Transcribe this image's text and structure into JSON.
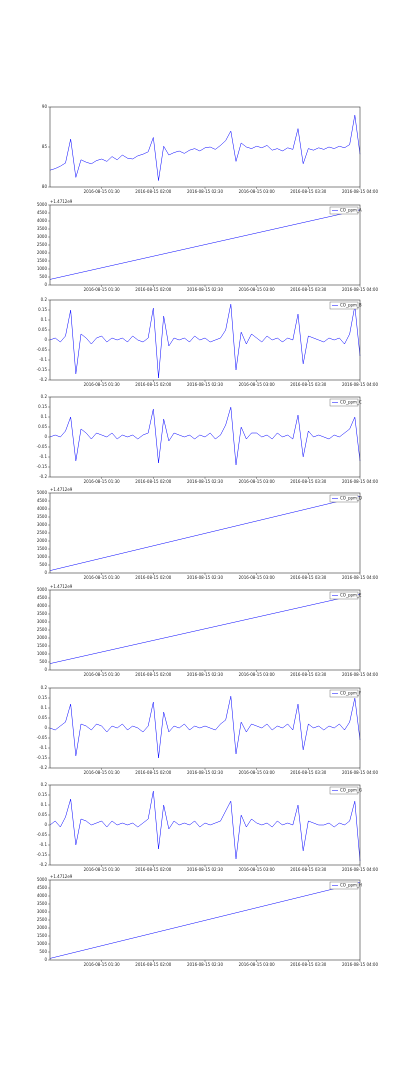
{
  "chart_data": [
    {
      "type": "line",
      "xlim": [
        0,
        60
      ],
      "xticks": [
        {
          "value": 10,
          "label": "2016-08-15 01:30"
        },
        {
          "value": 20,
          "label": "2016-08-15 02:00"
        },
        {
          "value": 30,
          "label": "2016-08-15 02:30"
        },
        {
          "value": 40,
          "label": "2016-08-15 03:00"
        },
        {
          "value": 50,
          "label": "2016-08-15 03:30"
        },
        {
          "value": 60,
          "label": "2016-08-15 04:00"
        }
      ],
      "ylim": [
        80,
        90
      ],
      "yticks": [
        80,
        85,
        90
      ],
      "series": [
        {
          "color": "#0000ff",
          "values": [
            82.1,
            82.3,
            82.6,
            83.0,
            86.0,
            81.2,
            83.4,
            83.1,
            82.9,
            83.3,
            83.5,
            83.2,
            83.8,
            83.4,
            84.0,
            83.6,
            83.5,
            83.9,
            84.1,
            84.4,
            86.2,
            80.8,
            85.1,
            84.0,
            84.3,
            84.5,
            84.2,
            84.6,
            84.8,
            84.5,
            84.9,
            85.0,
            84.7,
            85.2,
            85.8,
            87.0,
            83.2,
            85.5,
            85.0,
            84.8,
            85.1,
            84.9,
            85.2,
            84.6,
            84.8,
            84.5,
            84.9,
            84.7,
            87.3,
            82.9,
            84.8,
            84.6,
            84.9,
            84.7,
            85.0,
            84.8,
            85.1,
            84.9,
            85.3,
            89.0,
            84.1
          ]
        }
      ]
    },
    {
      "type": "line",
      "offset_text": "+1.4712e9",
      "legend": "CO_ppm_A",
      "xlim": [
        0,
        60
      ],
      "xticks": [
        {
          "value": 10,
          "label": "2016-08-15 01:30"
        },
        {
          "value": 20,
          "label": "2016-08-15 02:00"
        },
        {
          "value": 30,
          "label": "2016-08-15 02:30"
        },
        {
          "value": 40,
          "label": "2016-08-15 03:00"
        },
        {
          "value": 50,
          "label": "2016-08-15 03:30"
        },
        {
          "value": 60,
          "label": "2016-08-15 04:00"
        }
      ],
      "ylim": [
        0,
        5000
      ],
      "yticks": [
        0,
        500,
        1000,
        1500,
        2000,
        2500,
        3000,
        3500,
        4000,
        4500,
        5000
      ],
      "series": [
        {
          "name": "CO_ppm_A",
          "color": "#0000ff",
          "x": [
            0,
            60
          ],
          "values": [
            350,
            4700
          ]
        }
      ]
    },
    {
      "type": "line",
      "legend": "CO_ppm_B",
      "xlim": [
        0,
        60
      ],
      "xticks": [
        {
          "value": 10,
          "label": "2016-08-15 01:30"
        },
        {
          "value": 20,
          "label": "2016-08-15 02:00"
        },
        {
          "value": 30,
          "label": "2016-08-15 02:30"
        },
        {
          "value": 40,
          "label": "2016-08-15 03:00"
        },
        {
          "value": 50,
          "label": "2016-08-15 03:30"
        },
        {
          "value": 60,
          "label": "2016-08-15 04:00"
        }
      ],
      "ylim": [
        -0.2,
        0.2
      ],
      "yticks": [
        -0.2,
        -0.15,
        -0.1,
        -0.05,
        0,
        0.05,
        0.1,
        0.15,
        0.2
      ],
      "series": [
        {
          "name": "CO_ppm_B",
          "color": "#0000ff",
          "values": [
            0,
            0.01,
            -0.01,
            0.02,
            0.15,
            -0.17,
            0.03,
            0.01,
            -0.02,
            0.01,
            0.02,
            -0.01,
            0.01,
            0,
            0.01,
            -0.01,
            0.02,
            0,
            -0.01,
            0.01,
            0.16,
            -0.19,
            0.12,
            -0.03,
            0.01,
            0,
            0.01,
            -0.01,
            0.02,
            0,
            0.01,
            -0.01,
            0,
            0.01,
            0.05,
            0.18,
            -0.15,
            0.04,
            -0.02,
            0.03,
            0.01,
            -0.01,
            0.02,
            0,
            0.01,
            -0.01,
            0.01,
            0,
            0.13,
            -0.12,
            0.02,
            0.01,
            0,
            -0.01,
            0.01,
            0,
            0.01,
            -0.02,
            0.03,
            0.17,
            -0.08
          ]
        }
      ]
    },
    {
      "type": "line",
      "legend": "CO_ppm_C",
      "xlim": [
        0,
        60
      ],
      "xticks": [
        {
          "value": 10,
          "label": "2016-08-15 01:30"
        },
        {
          "value": 20,
          "label": "2016-08-15 02:00"
        },
        {
          "value": 30,
          "label": "2016-08-15 02:30"
        },
        {
          "value": 40,
          "label": "2016-08-15 03:00"
        },
        {
          "value": 50,
          "label": "2016-08-15 03:30"
        },
        {
          "value": 60,
          "label": "2016-08-15 04:00"
        }
      ],
      "ylim": [
        -0.2,
        0.2
      ],
      "yticks": [
        -0.2,
        -0.15,
        -0.1,
        -0.05,
        0,
        0.05,
        0.1,
        0.15,
        0.2
      ],
      "series": [
        {
          "name": "CO_ppm_C",
          "color": "#0000ff",
          "values": [
            0,
            0.01,
            0,
            0.03,
            0.1,
            -0.12,
            0.04,
            0.02,
            -0.01,
            0.02,
            0.01,
            0,
            0.02,
            -0.01,
            0.01,
            0,
            0.01,
            -0.01,
            0.01,
            0.02,
            0.14,
            -0.13,
            0.09,
            -0.02,
            0.02,
            0.01,
            0,
            0.01,
            -0.01,
            0.01,
            0,
            0.02,
            -0.01,
            0.01,
            0.06,
            0.15,
            -0.14,
            0.05,
            -0.01,
            0.02,
            0.02,
            0,
            0.01,
            -0.01,
            0.02,
            0,
            0.01,
            -0.01,
            0.11,
            -0.1,
            0.03,
            0,
            0.01,
            0,
            -0.01,
            0.01,
            0,
            0.02,
            0.04,
            0.1,
            -0.12
          ]
        }
      ]
    },
    {
      "type": "line",
      "offset_text": "+1.4712e9",
      "legend": "CO_ppm_D",
      "xlim": [
        0,
        60
      ],
      "xticks": [
        {
          "value": 10,
          "label": "2016-08-15 01:30"
        },
        {
          "value": 20,
          "label": "2016-08-15 02:00"
        },
        {
          "value": 30,
          "label": "2016-08-15 02:30"
        },
        {
          "value": 40,
          "label": "2016-08-15 03:00"
        },
        {
          "value": 50,
          "label": "2016-08-15 03:30"
        },
        {
          "value": 60,
          "label": "2016-08-15 04:00"
        }
      ],
      "ylim": [
        0,
        5000
      ],
      "yticks": [
        0,
        500,
        1000,
        1500,
        2000,
        2500,
        3000,
        3500,
        4000,
        4500,
        5000
      ],
      "series": [
        {
          "name": "CO_ppm_D",
          "color": "#0000ff",
          "x": [
            0,
            60
          ],
          "values": [
            150,
            4800
          ]
        }
      ]
    },
    {
      "type": "line",
      "offset_text": "+1.4712e9",
      "legend": "CO_ppm_E",
      "xlim": [
        0,
        60
      ],
      "xticks": [
        {
          "value": 10,
          "label": "2016-08-15 01:30"
        },
        {
          "value": 20,
          "label": "2016-08-15 02:00"
        },
        {
          "value": 30,
          "label": "2016-08-15 02:30"
        },
        {
          "value": 40,
          "label": "2016-08-15 03:00"
        },
        {
          "value": 50,
          "label": "2016-08-15 03:30"
        },
        {
          "value": 60,
          "label": "2016-08-15 04:00"
        }
      ],
      "ylim": [
        0,
        5000
      ],
      "yticks": [
        0,
        500,
        1000,
        1500,
        2000,
        2500,
        3000,
        3500,
        4000,
        4500,
        5000
      ],
      "series": [
        {
          "name": "CO_ppm_E",
          "color": "#0000ff",
          "x": [
            0,
            60
          ],
          "values": [
            400,
            4750
          ]
        }
      ]
    },
    {
      "type": "line",
      "legend": "CO_ppm_F",
      "xlim": [
        0,
        60
      ],
      "xticks": [
        {
          "value": 10,
          "label": "2016-08-15 01:30"
        },
        {
          "value": 20,
          "label": "2016-08-15 02:00"
        },
        {
          "value": 30,
          "label": "2016-08-15 02:30"
        },
        {
          "value": 40,
          "label": "2016-08-15 03:00"
        },
        {
          "value": 50,
          "label": "2016-08-15 03:30"
        },
        {
          "value": 60,
          "label": "2016-08-15 04:00"
        }
      ],
      "ylim": [
        -0.2,
        0.2
      ],
      "yticks": [
        -0.2,
        -0.15,
        -0.1,
        -0.05,
        0,
        0.05,
        0.1,
        0.15,
        0.2
      ],
      "series": [
        {
          "name": "CO_ppm_F",
          "color": "#0000ff",
          "values": [
            0,
            -0.01,
            0.01,
            0.03,
            0.12,
            -0.14,
            0.02,
            0.01,
            -0.01,
            0.02,
            0.01,
            -0.02,
            0.01,
            0,
            0.02,
            -0.01,
            0.01,
            0,
            -0.02,
            0.01,
            0.13,
            -0.15,
            0.08,
            -0.02,
            0.01,
            0,
            0.02,
            -0.01,
            0.01,
            0,
            0.01,
            0,
            -0.01,
            0.02,
            0.04,
            0.16,
            -0.13,
            0.03,
            -0.02,
            0.02,
            0.01,
            0,
            0.02,
            -0.01,
            0.01,
            0,
            0.02,
            -0.01,
            0.12,
            -0.11,
            0.02,
            0,
            0.01,
            -0.01,
            0.01,
            0,
            0.02,
            -0.01,
            0.03,
            0.15,
            -0.06
          ]
        }
      ]
    },
    {
      "type": "line",
      "legend": "CO_ppm_G",
      "xlim": [
        0,
        60
      ],
      "xticks": [
        {
          "value": 10,
          "label": "2016-08-15 01:30"
        },
        {
          "value": 20,
          "label": "2016-08-15 02:00"
        },
        {
          "value": 30,
          "label": "2016-08-15 02:30"
        },
        {
          "value": 40,
          "label": "2016-08-15 03:00"
        },
        {
          "value": 50,
          "label": "2016-08-15 03:30"
        },
        {
          "value": 60,
          "label": "2016-08-15 04:00"
        }
      ],
      "ylim": [
        -0.2,
        0.2
      ],
      "yticks": [
        -0.2,
        -0.15,
        -0.1,
        -0.05,
        0,
        0.05,
        0.1,
        0.15,
        0.2
      ],
      "series": [
        {
          "name": "CO_ppm_G",
          "color": "#0000ff",
          "values": [
            0,
            0.02,
            -0.01,
            0.04,
            0.13,
            -0.1,
            0.03,
            0.02,
            0,
            0.01,
            0.02,
            -0.01,
            0.02,
            0,
            0.01,
            0,
            0.01,
            -0.01,
            0.01,
            0.03,
            0.17,
            -0.12,
            0.1,
            -0.02,
            0.02,
            0,
            0.01,
            0,
            0.02,
            -0.01,
            0.01,
            0,
            0.01,
            0.02,
            0.07,
            0.12,
            -0.17,
            0.05,
            -0.01,
            0.03,
            0.01,
            0,
            0.01,
            -0.01,
            0.02,
            0,
            0.01,
            0,
            0.1,
            -0.13,
            0.02,
            0.01,
            0,
            0,
            0.01,
            -0.01,
            0.01,
            0,
            0.02,
            0.12,
            -0.18
          ]
        }
      ]
    },
    {
      "type": "line",
      "offset_text": "+1.4712e9",
      "legend": "CO_ppm_H",
      "xlim": [
        0,
        60
      ],
      "xticks": [
        {
          "value": 10,
          "label": "2016-08-15 01:30"
        },
        {
          "value": 20,
          "label": "2016-08-15 02:00"
        },
        {
          "value": 30,
          "label": "2016-08-15 02:30"
        },
        {
          "value": 40,
          "label": "2016-08-15 03:00"
        },
        {
          "value": 50,
          "label": "2016-08-15 03:30"
        },
        {
          "value": 60,
          "label": "2016-08-15 04:00"
        }
      ],
      "ylim": [
        0,
        5000
      ],
      "yticks": [
        0,
        500,
        1000,
        1500,
        2000,
        2500,
        3000,
        3500,
        4000,
        4500,
        5000
      ],
      "series": [
        {
          "name": "CO_ppm_H",
          "color": "#0000ff",
          "x": [
            0,
            60
          ],
          "values": [
            100,
            4850
          ]
        }
      ]
    }
  ]
}
